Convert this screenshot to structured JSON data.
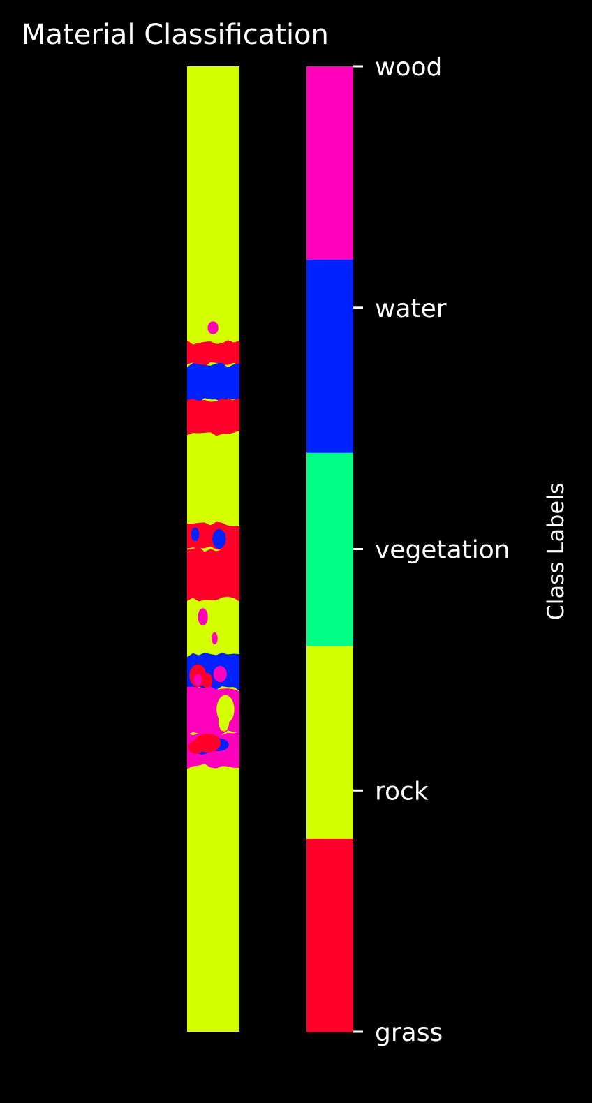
{
  "chart_data": {
    "type": "heatmap",
    "title": "Material Classification",
    "colorbar": {
      "label": "Class Labels",
      "ticks": [
        "grass",
        "rock",
        "vegetation",
        "water",
        "wood"
      ],
      "classes": [
        {
          "name": "grass",
          "color": "#ff002b"
        },
        {
          "name": "rock",
          "color": "#d4ff00"
        },
        {
          "name": "vegetation",
          "color": "#00ff84"
        },
        {
          "name": "water",
          "color": "#0022ff"
        },
        {
          "name": "wood",
          "color": "#ff00bb"
        }
      ]
    },
    "segmentation_map": {
      "background_class": "rock",
      "rows": [
        {
          "from": 0.0,
          "to": 0.254,
          "class": "rock"
        },
        {
          "from": 0.254,
          "to": 0.286,
          "class": "rock",
          "patches": [
            "wood"
          ]
        },
        {
          "from": 0.286,
          "to": 0.309,
          "class": "grass"
        },
        {
          "from": 0.309,
          "to": 0.346,
          "class": "water"
        },
        {
          "from": 0.346,
          "to": 0.38,
          "class": "grass"
        },
        {
          "from": 0.38,
          "to": 0.474,
          "class": "rock"
        },
        {
          "from": 0.474,
          "to": 0.5,
          "class": "grass",
          "patches": [
            "water"
          ]
        },
        {
          "from": 0.5,
          "to": 0.552,
          "class": "grass"
        },
        {
          "from": 0.552,
          "to": 0.61,
          "class": "rock",
          "patches": [
            "wood"
          ]
        },
        {
          "from": 0.61,
          "to": 0.645,
          "class": "water",
          "patches": [
            "grass",
            "wood"
          ]
        },
        {
          "from": 0.645,
          "to": 0.69,
          "class": "wood",
          "patches": [
            "rock"
          ]
        },
        {
          "from": 0.69,
          "to": 0.725,
          "class": "wood",
          "patches": [
            "water",
            "grass"
          ]
        },
        {
          "from": 0.725,
          "to": 1.0,
          "class": "rock"
        }
      ]
    }
  }
}
